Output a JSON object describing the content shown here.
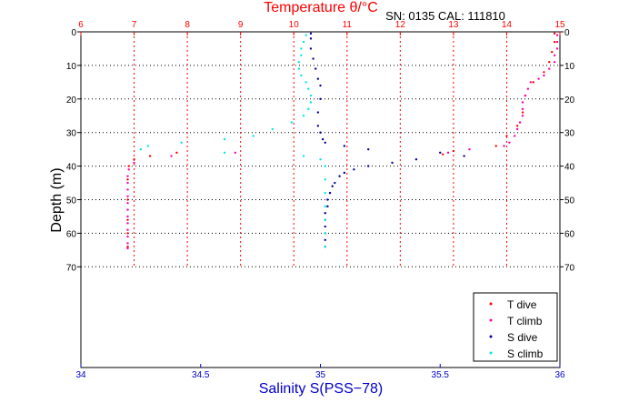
{
  "chart_data": {
    "type": "scatter",
    "title": "Temperature θ/°C",
    "annotation": "SN: 0135  CAL: 111810",
    "ylabel": "Depth (m)",
    "xlabel_bottom": "Salinity S(PSS−78)",
    "y_range": [
      0,
      100
    ],
    "y_ticks": [
      0,
      10,
      20,
      30,
      40,
      50,
      60,
      70
    ],
    "y_reversed": true,
    "temperature_axis": {
      "range": [
        6,
        15
      ],
      "ticks": [
        6,
        7,
        8,
        9,
        10,
        11,
        12,
        13,
        14,
        15
      ],
      "color": "#ff0000",
      "position": "top"
    },
    "salinity_axis": {
      "range": [
        34,
        36
      ],
      "ticks": [
        34,
        34.5,
        35,
        35.5,
        36
      ],
      "color": "#0000cc",
      "position": "bottom"
    },
    "grid": "dotted, depths 0–70",
    "legend_position": "bottom-right",
    "series": [
      {
        "name": "T dive",
        "axis": "temperature",
        "color": "#ff0000",
        "points": [
          [
            14.9,
            0.5
          ],
          [
            14.9,
            3
          ],
          [
            14.85,
            6
          ],
          [
            14.8,
            9
          ],
          [
            14.7,
            12
          ],
          [
            14.5,
            15
          ],
          [
            14.35,
            19
          ],
          [
            14.3,
            24
          ],
          [
            14.2,
            28
          ],
          [
            14.0,
            31
          ],
          [
            13.8,
            34
          ],
          [
            13.0,
            35.5
          ],
          [
            12.8,
            36.5
          ],
          [
            7.8,
            36
          ],
          [
            7.3,
            37
          ],
          [
            7.0,
            38
          ],
          [
            6.9,
            40
          ],
          [
            6.88,
            44
          ],
          [
            6.88,
            50
          ],
          [
            6.88,
            56
          ],
          [
            6.88,
            60
          ],
          [
            6.88,
            64
          ]
        ]
      },
      {
        "name": "T climb",
        "axis": "temperature",
        "color": "#ff00aa",
        "points": [
          [
            14.95,
            1
          ],
          [
            14.95,
            3
          ],
          [
            14.95,
            5
          ],
          [
            14.9,
            7
          ],
          [
            14.9,
            9
          ],
          [
            14.8,
            11
          ],
          [
            14.7,
            13
          ],
          [
            14.6,
            14
          ],
          [
            14.45,
            15
          ],
          [
            14.4,
            17
          ],
          [
            14.35,
            19
          ],
          [
            14.3,
            21
          ],
          [
            14.3,
            23
          ],
          [
            14.3,
            25
          ],
          [
            14.25,
            27
          ],
          [
            14.2,
            29
          ],
          [
            14.15,
            31
          ],
          [
            14.05,
            33
          ],
          [
            13.95,
            34
          ],
          [
            13.3,
            35
          ],
          [
            12.9,
            36
          ],
          [
            8.9,
            36
          ],
          [
            7.7,
            37
          ],
          [
            7.0,
            39
          ],
          [
            6.9,
            41
          ],
          [
            6.88,
            43
          ],
          [
            6.88,
            45
          ],
          [
            6.88,
            47
          ],
          [
            6.88,
            49
          ],
          [
            6.88,
            51
          ],
          [
            6.88,
            53
          ],
          [
            6.88,
            55
          ],
          [
            6.88,
            57
          ],
          [
            6.88,
            59
          ],
          [
            6.88,
            61
          ],
          [
            6.88,
            63
          ],
          [
            6.88,
            64.5
          ]
        ]
      },
      {
        "name": "S dive",
        "axis": "salinity",
        "color": "#000099",
        "points": [
          [
            34.96,
            0.5
          ],
          [
            34.96,
            2
          ],
          [
            34.96,
            5
          ],
          [
            34.97,
            8
          ],
          [
            34.98,
            11
          ],
          [
            34.99,
            14
          ],
          [
            35.0,
            16
          ],
          [
            35.0,
            20
          ],
          [
            34.99,
            24
          ],
          [
            34.99,
            28
          ],
          [
            35.0,
            30
          ],
          [
            35.01,
            32
          ],
          [
            35.02,
            33
          ],
          [
            35.1,
            34
          ],
          [
            35.2,
            35
          ],
          [
            35.5,
            36
          ],
          [
            35.6,
            37
          ],
          [
            35.4,
            38
          ],
          [
            35.3,
            39
          ],
          [
            35.2,
            40
          ],
          [
            35.14,
            41
          ],
          [
            35.1,
            42
          ],
          [
            35.08,
            43
          ],
          [
            35.06,
            45
          ],
          [
            35.05,
            46
          ],
          [
            35.04,
            48
          ],
          [
            35.03,
            50
          ],
          [
            35.03,
            52
          ],
          [
            35.02,
            54
          ],
          [
            35.02,
            56
          ],
          [
            35.02,
            58
          ],
          [
            35.02,
            60
          ],
          [
            35.02,
            62
          ],
          [
            35.02,
            64
          ]
        ]
      },
      {
        "name": "S climb",
        "axis": "salinity",
        "color": "#00e5e5",
        "points": [
          [
            34.94,
            1
          ],
          [
            34.93,
            3
          ],
          [
            34.92,
            5
          ],
          [
            34.92,
            7
          ],
          [
            34.91,
            9
          ],
          [
            34.91,
            11
          ],
          [
            34.92,
            13
          ],
          [
            34.94,
            15
          ],
          [
            34.95,
            17
          ],
          [
            34.96,
            19
          ],
          [
            34.96,
            21
          ],
          [
            34.95,
            23
          ],
          [
            34.93,
            25
          ],
          [
            34.88,
            27
          ],
          [
            34.8,
            29
          ],
          [
            34.72,
            31
          ],
          [
            34.6,
            32
          ],
          [
            34.42,
            33
          ],
          [
            34.28,
            34
          ],
          [
            34.25,
            35
          ],
          [
            34.6,
            36
          ],
          [
            34.93,
            37
          ],
          [
            35.0,
            38
          ],
          [
            35.02,
            40
          ],
          [
            35.02,
            44
          ],
          [
            35.02,
            48
          ],
          [
            35.02,
            52
          ],
          [
            35.02,
            56
          ],
          [
            35.02,
            60
          ],
          [
            35.02,
            64
          ]
        ]
      }
    ]
  }
}
